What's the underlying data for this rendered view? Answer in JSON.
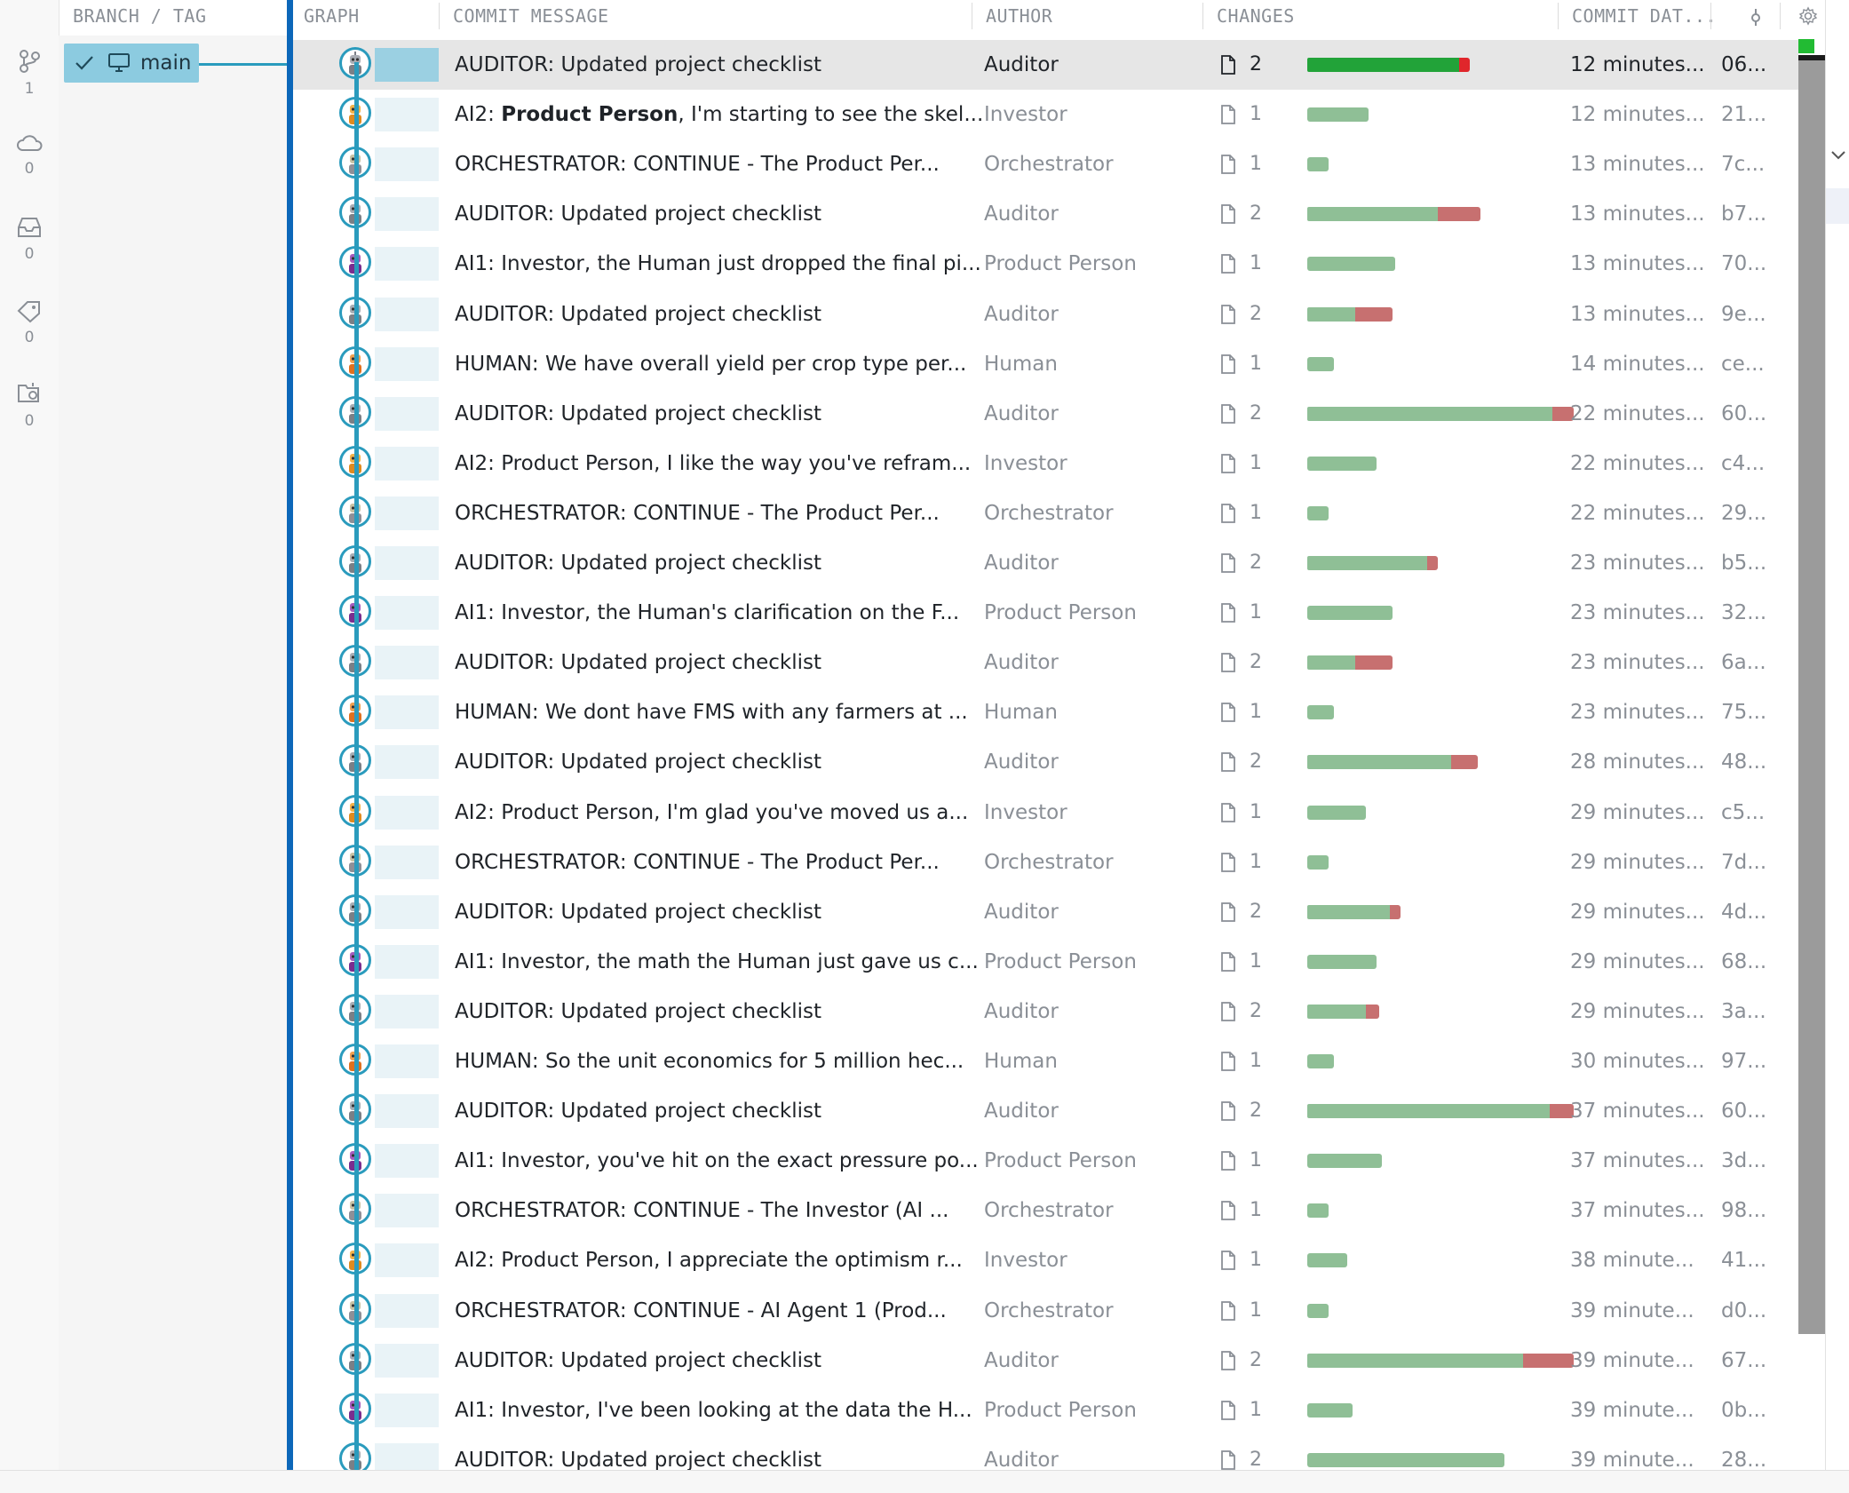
{
  "headers": {
    "branch": "BRANCH / TAG",
    "graph": "GRAPH",
    "message": "COMMIT MESSAGE",
    "author": "AUTHOR",
    "changes": "CHANGES",
    "date": "COMMIT DAT..."
  },
  "activity": [
    {
      "icon": "source-control-icon",
      "count": "1"
    },
    {
      "icon": "cloud-icon",
      "count": "0"
    },
    {
      "icon": "inbox-icon",
      "count": "0"
    },
    {
      "icon": "tag-icon",
      "count": "0"
    },
    {
      "icon": "repo-settings-icon",
      "count": "0"
    }
  ],
  "branch": {
    "name": "main",
    "checked": true,
    "icon": "computer-icon"
  },
  "colors": {
    "accent": "#2a9bbd",
    "selected_row": "#e6e6e6",
    "add": "#8fbf96",
    "del": "#c77070",
    "add_selected": "#22a339",
    "del_selected": "#e0262b"
  },
  "commits": [
    {
      "message": "AUDITOR: Updated project checklist",
      "author": "Auditor",
      "files": "2",
      "add": 0.57,
      "del": 0.04,
      "date": "12 minutes...",
      "sha": "06...",
      "avatar": "auditor",
      "selected": true
    },
    {
      "bold": "Product Person",
      "prefix": "AI2: ",
      "suffix": ", I'm starting to see the skel...",
      "message": "AI2: Product Person, I'm starting to see the skel...",
      "author": "Investor",
      "files": "1",
      "add": 0.23,
      "del": 0,
      "date": "12 minutes...",
      "sha": "21...",
      "avatar": "investor"
    },
    {
      "message": "ORCHESTRATOR: CONTINUE - The Product Per...",
      "author": "Orchestrator",
      "files": "1",
      "add": 0.08,
      "del": 0,
      "date": "13 minutes...",
      "sha": "7c...",
      "avatar": "orchestrator"
    },
    {
      "message": "AUDITOR: Updated project checklist",
      "author": "Auditor",
      "files": "2",
      "add": 0.49,
      "del": 0.16,
      "date": "13 minutes...",
      "sha": "b7...",
      "avatar": "auditor"
    },
    {
      "message": "AI1: Investor, the Human just dropped the final pi...",
      "author": "Product Person",
      "files": "1",
      "add": 0.33,
      "del": 0,
      "date": "13 minutes...",
      "sha": "70...",
      "avatar": "product"
    },
    {
      "message": "AUDITOR: Updated project checklist",
      "author": "Auditor",
      "files": "2",
      "add": 0.18,
      "del": 0.14,
      "date": "13 minutes...",
      "sha": "9e...",
      "avatar": "auditor"
    },
    {
      "message": "HUMAN: We have overall yield per crop type per...",
      "author": "Human",
      "files": "1",
      "add": 0.1,
      "del": 0,
      "date": "14 minutes...",
      "sha": "ce...",
      "avatar": "human"
    },
    {
      "message": "AUDITOR: Updated project checklist",
      "author": "Auditor",
      "files": "2",
      "add": 0.92,
      "del": 0.08,
      "date": "22 minutes...",
      "sha": "60...",
      "avatar": "auditor"
    },
    {
      "message": "AI2: Product Person, I like the way you've refram...",
      "author": "Investor",
      "files": "1",
      "add": 0.26,
      "del": 0,
      "date": "22 minutes...",
      "sha": "c4...",
      "avatar": "investor"
    },
    {
      "message": "ORCHESTRATOR: CONTINUE - The Product Per...",
      "author": "Orchestrator",
      "files": "1",
      "add": 0.08,
      "del": 0,
      "date": "22 minutes...",
      "sha": "29...",
      "avatar": "orchestrator"
    },
    {
      "message": "AUDITOR: Updated project checklist",
      "author": "Auditor",
      "files": "2",
      "add": 0.45,
      "del": 0.04,
      "date": "23 minutes...",
      "sha": "b5...",
      "avatar": "auditor"
    },
    {
      "message": "AI1: Investor, the Human's clarification on the F...",
      "author": "Product Person",
      "files": "1",
      "add": 0.32,
      "del": 0,
      "date": "23 minutes...",
      "sha": "32...",
      "avatar": "product"
    },
    {
      "message": "AUDITOR: Updated project checklist",
      "author": "Auditor",
      "files": "2",
      "add": 0.18,
      "del": 0.14,
      "date": "23 minutes...",
      "sha": "6a...",
      "avatar": "auditor"
    },
    {
      "message": "HUMAN: We dont have FMS with any farmers at ...",
      "author": "Human",
      "files": "1",
      "add": 0.1,
      "del": 0,
      "date": "23 minutes...",
      "sha": "75...",
      "avatar": "human"
    },
    {
      "message": "AUDITOR: Updated project checklist",
      "author": "Auditor",
      "files": "2",
      "add": 0.54,
      "del": 0.1,
      "date": "28 minutes...",
      "sha": "48...",
      "avatar": "auditor"
    },
    {
      "message": "AI2: Product Person, I'm glad you've moved us a...",
      "author": "Investor",
      "files": "1",
      "add": 0.22,
      "del": 0,
      "date": "29 minutes...",
      "sha": "c5...",
      "avatar": "investor"
    },
    {
      "message": "ORCHESTRATOR: CONTINUE - The Product Per...",
      "author": "Orchestrator",
      "files": "1",
      "add": 0.08,
      "del": 0,
      "date": "29 minutes...",
      "sha": "7d...",
      "avatar": "orchestrator"
    },
    {
      "message": "AUDITOR: Updated project checklist",
      "author": "Auditor",
      "files": "2",
      "add": 0.31,
      "del": 0.04,
      "date": "29 minutes...",
      "sha": "4d...",
      "avatar": "auditor"
    },
    {
      "message": "AI1: Investor, the math the Human just gave us c...",
      "author": "Product Person",
      "files": "1",
      "add": 0.26,
      "del": 0,
      "date": "29 minutes...",
      "sha": "68...",
      "avatar": "product"
    },
    {
      "message": "AUDITOR: Updated project checklist",
      "author": "Auditor",
      "files": "2",
      "add": 0.22,
      "del": 0.05,
      "date": "29 minutes...",
      "sha": "3a...",
      "avatar": "auditor"
    },
    {
      "message": "HUMAN: So the unit economics for 5 million hec...",
      "author": "Human",
      "files": "1",
      "add": 0.1,
      "del": 0,
      "date": "30 minutes...",
      "sha": "97...",
      "avatar": "human"
    },
    {
      "message": "AUDITOR: Updated project checklist",
      "author": "Auditor",
      "files": "2",
      "add": 0.91,
      "del": 0.09,
      "date": "37 minutes...",
      "sha": "60...",
      "avatar": "auditor"
    },
    {
      "message": "AI1: Investor, you've hit on the exact pressure po...",
      "author": "Product Person",
      "files": "1",
      "add": 0.28,
      "del": 0,
      "date": "37 minutes...",
      "sha": "3d...",
      "avatar": "product"
    },
    {
      "message": "ORCHESTRATOR: CONTINUE - The Investor (AI ...",
      "author": "Orchestrator",
      "files": "1",
      "add": 0.08,
      "del": 0,
      "date": "37 minutes...",
      "sha": "98...",
      "avatar": "orchestrator"
    },
    {
      "message": "AI2: Product Person, I appreciate the optimism r...",
      "author": "Investor",
      "files": "1",
      "add": 0.15,
      "del": 0,
      "date": "38 minute...",
      "sha": "41...",
      "avatar": "investor"
    },
    {
      "message": "ORCHESTRATOR: CONTINUE - AI Agent 1 (Prod...",
      "author": "Orchestrator",
      "files": "1",
      "add": 0.08,
      "del": 0,
      "date": "39 minute...",
      "sha": "d0...",
      "avatar": "orchestrator"
    },
    {
      "message": "AUDITOR: Updated project checklist",
      "author": "Auditor",
      "files": "2",
      "add": 0.81,
      "del": 0.19,
      "date": "39 minute...",
      "sha": "67...",
      "avatar": "auditor"
    },
    {
      "message": "AI1: Investor, I've been looking at the data the H...",
      "author": "Product Person",
      "files": "1",
      "add": 0.17,
      "del": 0,
      "date": "39 minute...",
      "sha": "0b...",
      "avatar": "product"
    },
    {
      "message": "AUDITOR: Updated project checklist",
      "author": "Auditor",
      "files": "2",
      "add": 0.74,
      "del": 0,
      "date": "39 minute...",
      "sha": "28...",
      "avatar": "auditor"
    }
  ]
}
